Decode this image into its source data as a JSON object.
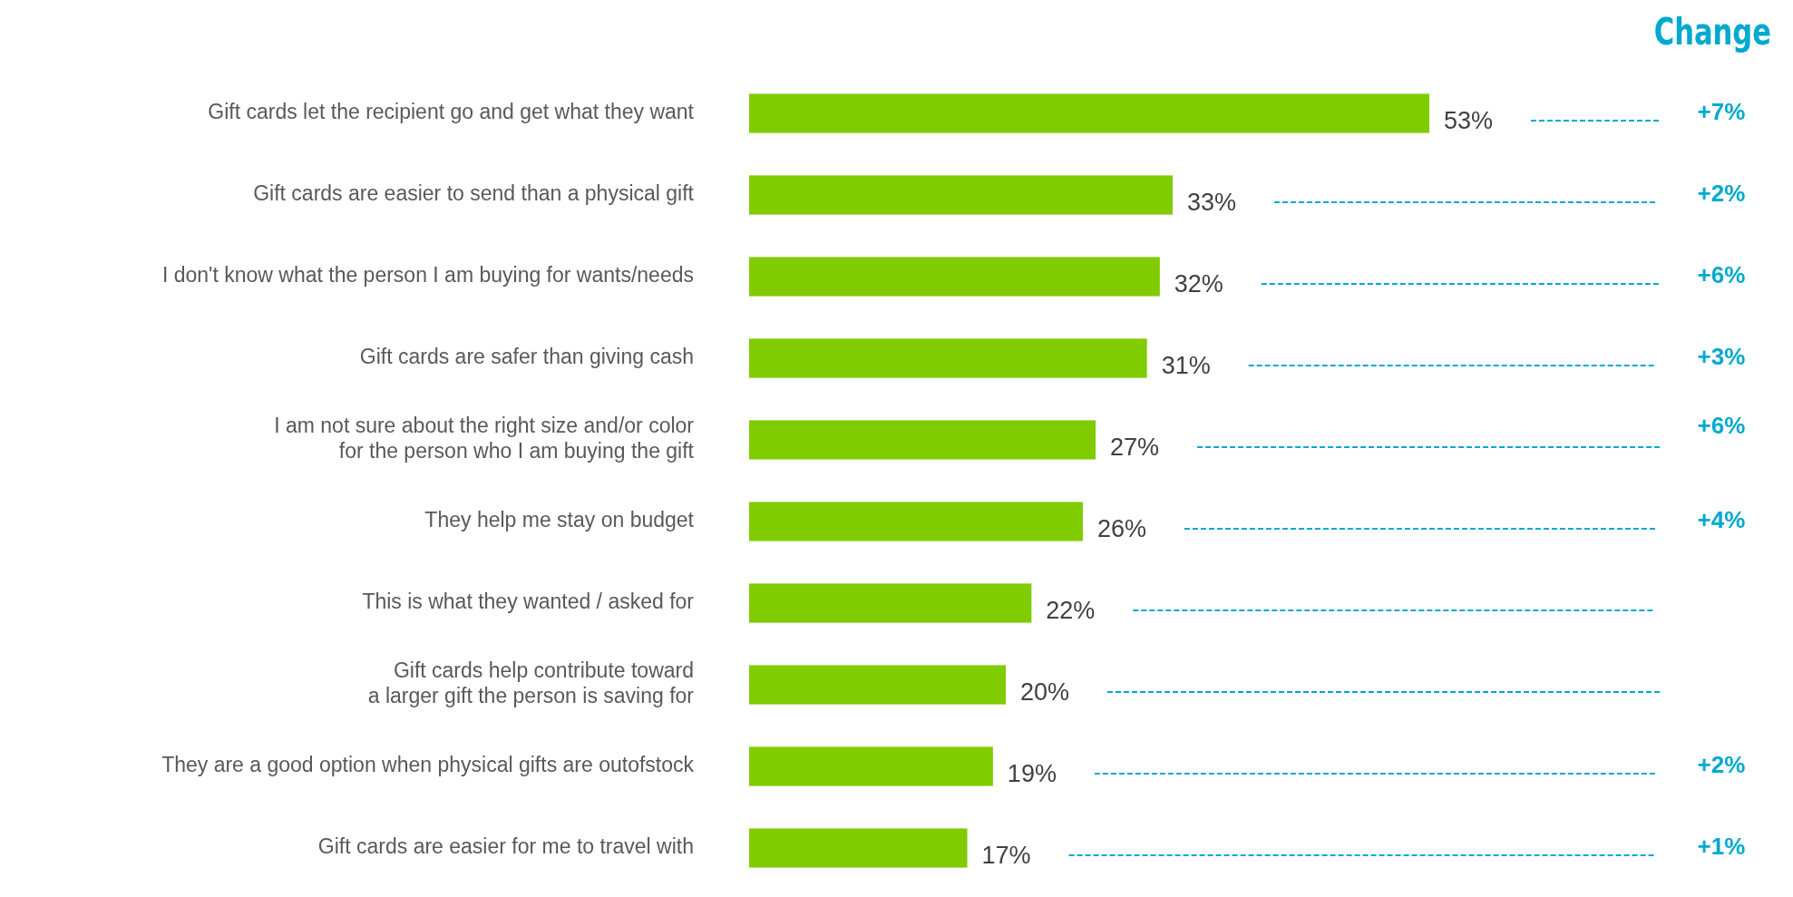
{
  "chart_data": {
    "type": "bar",
    "orientation": "horizontal",
    "color": "#80cc00",
    "categories": [
      "Gift cards let the recipient go and get what they want",
      "Gift cards are easier to send than a physical gift",
      "I don't know what the person I am buying for wants/needs",
      "Gift cards are safer than giving cash",
      "I am not sure about the right size and/or color\nfor the person who I am buying the gift",
      "They help me stay on budget",
      "This is what they wanted / asked for",
      "Gift cards help contribute toward\na larger gift the person is saving for",
      "They are a good option when physical gifts are outofstock",
      "Gift cards are easier for me to travel with"
    ],
    "values": [
      53,
      33,
      32,
      31,
      27,
      26,
      22,
      20,
      19,
      17
    ],
    "value_labels": [
      "53%",
      "33%",
      "32%",
      "31%",
      "27%",
      "26%",
      "22%",
      "20%",
      "19%",
      "17%"
    ],
    "y2_categories": [
      "+7%",
      "+2%",
      "+6%",
      "+3%",
      "+6%",
      "+4%",
      null,
      null,
      "+2%",
      "+1%"
    ],
    "annotations": [
      "Change"
    ]
  }
}
